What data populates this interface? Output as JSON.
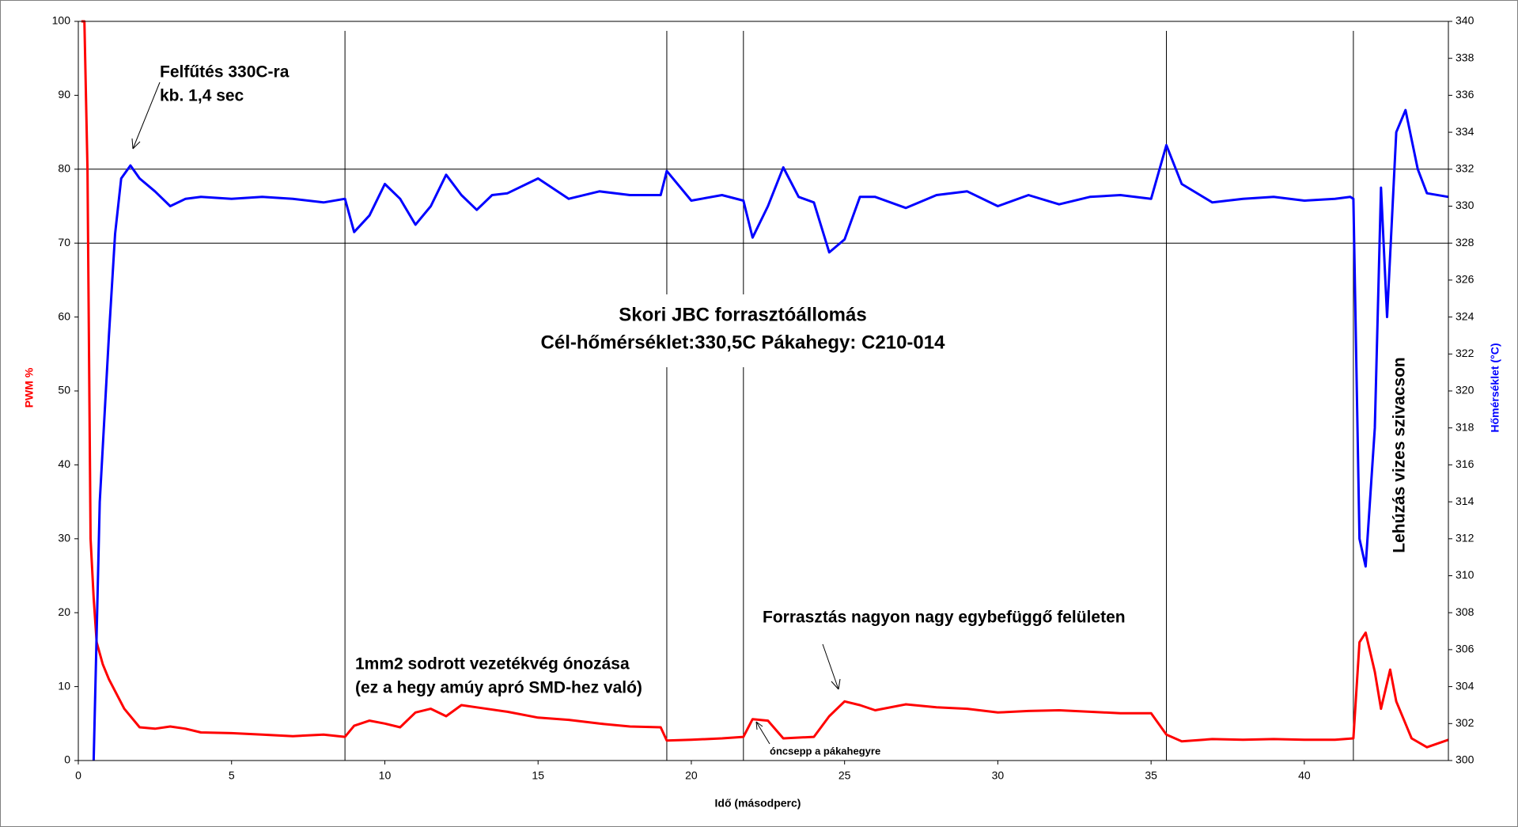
{
  "chart_data": {
    "type": "line",
    "title": "Skori JBC forrasztóállomás",
    "subtitle": "Cél-hőmérséklet:330,5C Pákahegy: C210-014",
    "x_label": "Idő (másodperc)",
    "y_label": "PWM %",
    "y2_label": "Hőmérséklet (°C)",
    "xlim": [
      0,
      44.7
    ],
    "xticks": [
      0,
      5,
      10,
      15,
      20,
      25,
      30,
      35,
      40
    ],
    "ylim": [
      0,
      100
    ],
    "yticks": [
      0,
      10,
      20,
      30,
      40,
      50,
      60,
      70,
      80,
      90,
      100
    ],
    "y2lim": [
      300,
      340
    ],
    "y2ticks": [
      300,
      302,
      304,
      306,
      308,
      310,
      312,
      314,
      316,
      318,
      320,
      322,
      324,
      326,
      328,
      330,
      332,
      334,
      336,
      338,
      340
    ],
    "hlines": [
      70,
      80
    ],
    "vlines": [
      8.7,
      19.2,
      21.7,
      35.5,
      41.6
    ],
    "annotations": [
      "Felfűtés 330C-ra",
      "kb. 1,4 sec",
      "1mm2 sodrott vezetékvég ónozása",
      "(ez a hegy amúy apró SMD-hez való)",
      "Forrasztás nagyon nagy egybefüggő felületen",
      "óncsepp a pákahegyre",
      "Lehúzás vizes szivacson"
    ],
    "series": [
      {
        "name": "PWM %",
        "color": "#ff0000",
        "x": [
          0.1,
          0.2,
          0.3,
          0.4,
          0.5,
          0.6,
          0.8,
          1.0,
          1.5,
          2,
          2.5,
          3,
          3.5,
          4,
          5,
          6,
          7,
          8,
          8.7,
          9,
          9.5,
          10,
          10.5,
          11,
          11.5,
          12,
          12.5,
          13,
          14,
          15,
          16,
          17,
          18,
          19,
          19.2,
          20,
          21,
          21.7,
          22,
          22.5,
          23,
          24,
          24.5,
          25,
          25.5,
          26,
          27,
          28,
          29,
          30,
          31,
          32,
          33,
          34,
          35,
          35.5,
          36,
          37,
          38,
          39,
          40,
          41,
          41.6,
          41.8,
          42,
          42.3,
          42.5,
          42.8,
          43,
          43.5,
          44,
          44.7
        ],
        "values": [
          100,
          100,
          80,
          30,
          22,
          16,
          13,
          11,
          7,
          4.5,
          4.3,
          4.6,
          4.3,
          3.8,
          3.7,
          3.5,
          3.3,
          3.5,
          3.2,
          4.7,
          5.4,
          5,
          4.5,
          6.5,
          7,
          6,
          7.5,
          7.2,
          6.6,
          5.8,
          5.5,
          5,
          4.6,
          4.5,
          2.7,
          2.8,
          3,
          3.2,
          5.6,
          5.4,
          3,
          3.2,
          6,
          8,
          7.5,
          6.8,
          7.6,
          7.2,
          7,
          6.5,
          6.7,
          6.8,
          6.6,
          6.4,
          6.4,
          3.5,
          2.6,
          2.9,
          2.8,
          2.9,
          2.8,
          2.8,
          3,
          16,
          17.3,
          12,
          7,
          12.3,
          8,
          3,
          1.8,
          2.8
        ]
      },
      {
        "name": "Hőmérséklet",
        "color": "#0000ff",
        "axis": "y2",
        "x": [
          0.5,
          0.7,
          1.0,
          1.2,
          1.4,
          1.7,
          2,
          2.5,
          3,
          3.5,
          4,
          5,
          6,
          7,
          8,
          8.7,
          9,
          9.5,
          10,
          10.5,
          11,
          11.5,
          12,
          12.5,
          13,
          13.5,
          14,
          15,
          16,
          17,
          18,
          19,
          19.2,
          20,
          21,
          21.7,
          22,
          22.5,
          23,
          23.5,
          24,
          24.5,
          25,
          25.5,
          26,
          27,
          28,
          29,
          30,
          31,
          32,
          33,
          34,
          35,
          35.5,
          36,
          37,
          38,
          39,
          40,
          41,
          41.5,
          41.6,
          41.8,
          42,
          42.3,
          42.5,
          42.7,
          43,
          43.3,
          43.7,
          44,
          44.7
        ],
        "values": [
          300,
          314,
          323,
          328.5,
          331.5,
          332.2,
          331.5,
          330.8,
          330,
          330.4,
          330.5,
          330.4,
          330.5,
          330.4,
          330.2,
          330.4,
          328.6,
          329.5,
          331.2,
          330.4,
          329,
          330,
          331.7,
          330.6,
          329.8,
          330.6,
          330.7,
          331.5,
          330.4,
          330.8,
          330.6,
          330.6,
          331.9,
          330.3,
          330.6,
          330.3,
          328.3,
          330,
          332.1,
          330.5,
          330.2,
          327.5,
          328.2,
          330.5,
          330.5,
          329.9,
          330.6,
          330.8,
          330,
          330.6,
          330.1,
          330.5,
          330.6,
          330.4,
          333.3,
          331.2,
          330.2,
          330.4,
          330.5,
          330.3,
          330.4,
          330.5,
          330.4,
          312,
          310.5,
          318,
          331,
          324,
          334,
          335.2,
          332,
          330.7,
          330.5
        ]
      }
    ]
  }
}
